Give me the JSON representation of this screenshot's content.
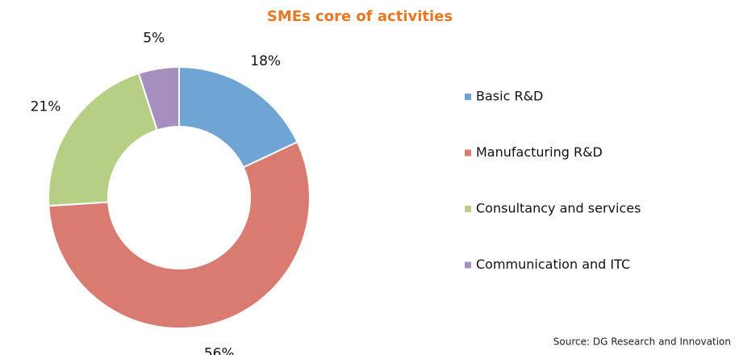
{
  "chart_data": {
    "type": "donut",
    "title": "SMEs core of activities",
    "categories": [
      "Basic R&D",
      "Manufacturing R&D",
      "Consultancy and services",
      "Communication and ITC"
    ],
    "values": [
      18,
      56,
      21,
      5
    ],
    "value_labels": [
      "18%",
      "56%",
      "21%",
      "5%"
    ],
    "colors": [
      "#6fa5d4",
      "#d97b70",
      "#b7cf85",
      "#a58fbf"
    ],
    "legend": "right",
    "source": "Source: DG Research and Innovation"
  }
}
